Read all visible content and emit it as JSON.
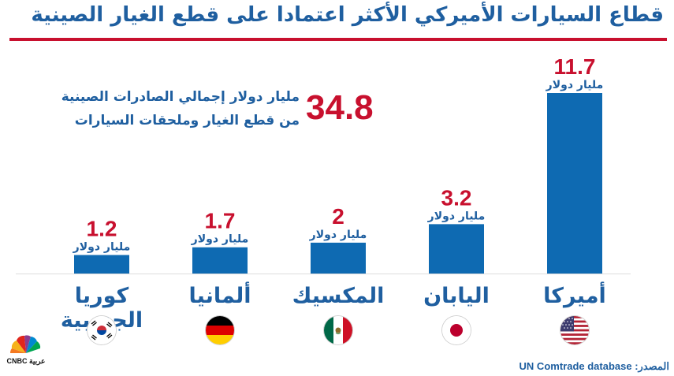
{
  "header": {
    "title": "قطاع السيارات الأميركي الأكثر اعتمادا على قطع الغيار الصينية"
  },
  "summary": {
    "value": "34.8",
    "line1": "مليار دولار إجمالي الصادرات الصينية",
    "line2": "من قطع الغيار وملحقات السيارات"
  },
  "unit_label": "مليار دولار",
  "chart_data": {
    "type": "bar",
    "title": "قطاع السيارات الأميركي الأكثر اعتمادا على قطع الغيار الصينية",
    "categories": [
      "كوريا الجنوبية",
      "ألمانيا",
      "المكسيك",
      "اليابان",
      "أميركا"
    ],
    "values": [
      1.2,
      1.7,
      2,
      3.2,
      11.7
    ],
    "value_labels": [
      "1.2",
      "1.7",
      "2",
      "3.2",
      "11.7"
    ],
    "unit": "مليار دولار",
    "bar_color": "#0e6ab2",
    "value_color": "#c8102e",
    "ylim": [
      0,
      11.7
    ],
    "grid": false,
    "legend": "none"
  },
  "flags": [
    "south-korea-flag-icon",
    "germany-flag-icon",
    "mexico-flag-icon",
    "japan-flag-icon",
    "usa-flag-icon"
  ],
  "footer": {
    "source": "المصدر: UN Comtrade database",
    "logo_text": "CNBC عربية"
  },
  "colors": {
    "title": "#1f5fa0",
    "accent_red": "#c8102e",
    "bar": "#0e6ab2"
  }
}
